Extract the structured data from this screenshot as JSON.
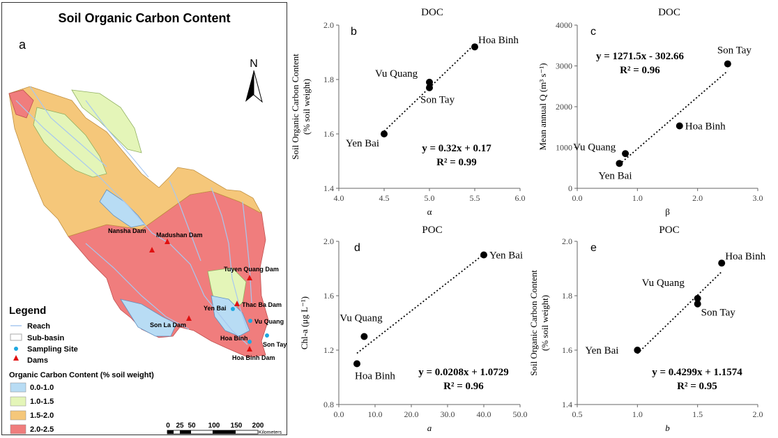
{
  "map": {
    "title": "Soil Organic Carbon Content",
    "letter": "a",
    "north": "N",
    "legend_title": "Legend",
    "legend_items": [
      {
        "label": "Reach",
        "kind": "line",
        "color": "#a8c8f0"
      },
      {
        "label": "Sub-basin",
        "kind": "box",
        "color": "#aaaaaa"
      },
      {
        "label": "Sampling Site",
        "kind": "dot",
        "color": "#1fa8e0"
      },
      {
        "label": "Dams",
        "kind": "tri",
        "color": "#e01010"
      }
    ],
    "class_title": "Organic Carbon Content (% soil weight)",
    "classes": [
      {
        "label": "0.0-1.0",
        "color": "#b8dcf4"
      },
      {
        "label": "1.0-1.5",
        "color": "#e4f5b8"
      },
      {
        "label": "1.5-2.0",
        "color": "#f5c77a"
      },
      {
        "label": "2.0-2.5",
        "color": "#f07d7d"
      }
    ],
    "scale_ticks": [
      "0",
      "25",
      "50",
      "100",
      "150",
      "200"
    ],
    "scale_unit": "Kilometers",
    "dams": [
      {
        "label": "Nansha Dam"
      },
      {
        "label": "Madushan Dam"
      },
      {
        "label": "Tuyen Quang Dam"
      },
      {
        "label": "Thac Ba Dam"
      },
      {
        "label": "Son La Dam"
      },
      {
        "label": "Hoa Binh Dam"
      }
    ],
    "sites": [
      {
        "label": "Yen Bai"
      },
      {
        "label": "Vu Quang"
      },
      {
        "label": "Hoa Binh"
      },
      {
        "label": "Son Tay"
      }
    ]
  },
  "chart_data": [
    {
      "id": "b",
      "type": "scatter",
      "title": "DOC",
      "letter": "b",
      "xlabel": "α",
      "xlabel_italic": false,
      "ylabel": "Soil Organic Carbon Content",
      "ylabel2": "(% soil weight)",
      "xlim": [
        4.0,
        6.0
      ],
      "ylim": [
        1.4,
        2.0
      ],
      "xticks": [
        "4.0",
        "4.5",
        "5.0",
        "5.5",
        "6.0"
      ],
      "yticks": [
        "1.4",
        "1.6",
        "1.8",
        "2.0"
      ],
      "points": [
        {
          "x": 4.5,
          "y": 1.6,
          "label": "Yen Bai"
        },
        {
          "x": 5.0,
          "y": 1.79,
          "label": "Vu Quang"
        },
        {
          "x": 5.0,
          "y": 1.77,
          "label": "Son Tay"
        },
        {
          "x": 5.5,
          "y": 1.92,
          "label": "Hoa Binh"
        }
      ],
      "trend": {
        "slope": 0.32,
        "intercept": 0.17,
        "x0": 4.5,
        "x1": 5.5
      },
      "equation": "y = 0.32x + 0.17",
      "r2": "R² = 0.99"
    },
    {
      "id": "c",
      "type": "scatter",
      "title": "DOC",
      "letter": "c",
      "xlabel": "β",
      "xlabel_italic": false,
      "ylabel": "Mean annual Q (m³ s⁻¹)",
      "ylabel2": "",
      "xlim": [
        0.0,
        3.0
      ],
      "ylim": [
        0,
        4000
      ],
      "xticks": [
        "0.0",
        "1.0",
        "2.0",
        "3.0"
      ],
      "yticks": [
        "0",
        "1000",
        "2000",
        "3000",
        "4000"
      ],
      "points": [
        {
          "x": 0.7,
          "y": 610,
          "label": "Yen Bai"
        },
        {
          "x": 0.8,
          "y": 850,
          "label": "Vu Quang"
        },
        {
          "x": 1.7,
          "y": 1530,
          "label": "Hoa Binh"
        },
        {
          "x": 2.5,
          "y": 3050,
          "label": "Son Tay"
        }
      ],
      "trend": {
        "slope": 1271.5,
        "intercept": -302.66,
        "x0": 0.7,
        "x1": 2.5
      },
      "equation": "y = 1271.5x - 302.66",
      "r2": "R² = 0.96"
    },
    {
      "id": "d",
      "type": "scatter",
      "title": "POC",
      "letter": "d",
      "xlabel": "a",
      "xlabel_italic": true,
      "ylabel": "Chl-a (μg L⁻¹)",
      "ylabel2": "",
      "xlim": [
        0.0,
        50.0
      ],
      "ylim": [
        0.8,
        2.0
      ],
      "xticks": [
        "0.0",
        "10.0",
        "20.0",
        "30.0",
        "40.0",
        "50.0"
      ],
      "yticks": [
        "0.8",
        "1.2",
        "1.6",
        "2.0"
      ],
      "points": [
        {
          "x": 5,
          "y": 1.1,
          "label": "Hoa Binh"
        },
        {
          "x": 7,
          "y": 1.3,
          "label": "Vu Quang"
        },
        {
          "x": 40,
          "y": 1.9,
          "label": "Yen Bai"
        }
      ],
      "trend": {
        "slope": 0.0208,
        "intercept": 1.0729,
        "x0": 5,
        "x1": 40
      },
      "equation": "y = 0.0208x + 1.0729",
      "r2": "R² = 0.96"
    },
    {
      "id": "e",
      "type": "scatter",
      "title": "POC",
      "letter": "e",
      "xlabel": "b",
      "xlabel_italic": true,
      "ylabel": "Soil Organic Carbon Content",
      "ylabel2": "(% soil weight)",
      "xlim": [
        0.5,
        2.0
      ],
      "ylim": [
        1.4,
        2.0
      ],
      "xticks": [
        "0.5",
        "1.0",
        "1.5",
        "2.0"
      ],
      "yticks": [
        "1.4",
        "1.6",
        "1.8",
        "2.0"
      ],
      "points": [
        {
          "x": 1.0,
          "y": 1.6,
          "label": "Yen Bai"
        },
        {
          "x": 1.5,
          "y": 1.79,
          "label": "Vu Quang"
        },
        {
          "x": 1.5,
          "y": 1.77,
          "label": "Son Tay"
        },
        {
          "x": 1.7,
          "y": 1.92,
          "label": "Hoa Binh"
        }
      ],
      "trend": {
        "slope": 0.4299,
        "intercept": 1.1574,
        "x0": 1.0,
        "x1": 1.7
      },
      "equation": "y = 0.4299x + 1.1574",
      "r2": "R² = 0.95"
    }
  ]
}
